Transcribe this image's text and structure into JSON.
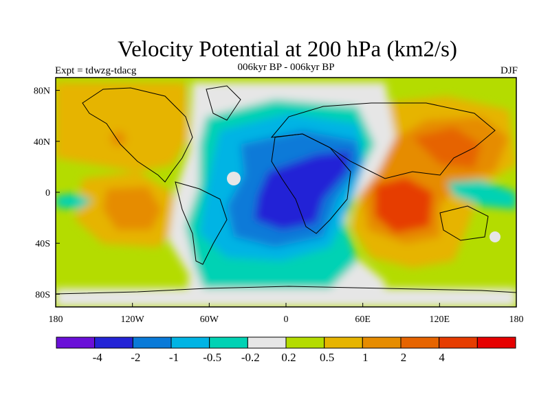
{
  "header": {
    "title": "Velocity Potential at 200 hPa (km2/s)",
    "left_label": "Expt = tdwzg-tdacg",
    "center_label": "006kyr BP - 006kyr BP",
    "right_label": "DJF"
  },
  "map": {
    "projection": "cylindrical-equidistant",
    "lon_range": [
      -180,
      180
    ],
    "lat_range": [
      -90,
      90
    ],
    "lon_ticks": [
      "180",
      "120W",
      "60W",
      "0",
      "60E",
      "120E",
      "180"
    ],
    "lat_ticks": [
      "80N",
      "40N",
      "0",
      "40S",
      "80S"
    ]
  },
  "colorbar": {
    "colors": [
      "#6a10d8",
      "#2424d6",
      "#0a7ad8",
      "#00b4e4",
      "#00d2b4",
      "#e6e6e6",
      "#b4dc00",
      "#e6b400",
      "#e68c00",
      "#e66400",
      "#e63c00",
      "#e60000"
    ],
    "labels": [
      "-4",
      "-2",
      "-1",
      "-0.5",
      "-0.2",
      "0.2",
      "0.5",
      "1",
      "2",
      "4"
    ]
  }
}
